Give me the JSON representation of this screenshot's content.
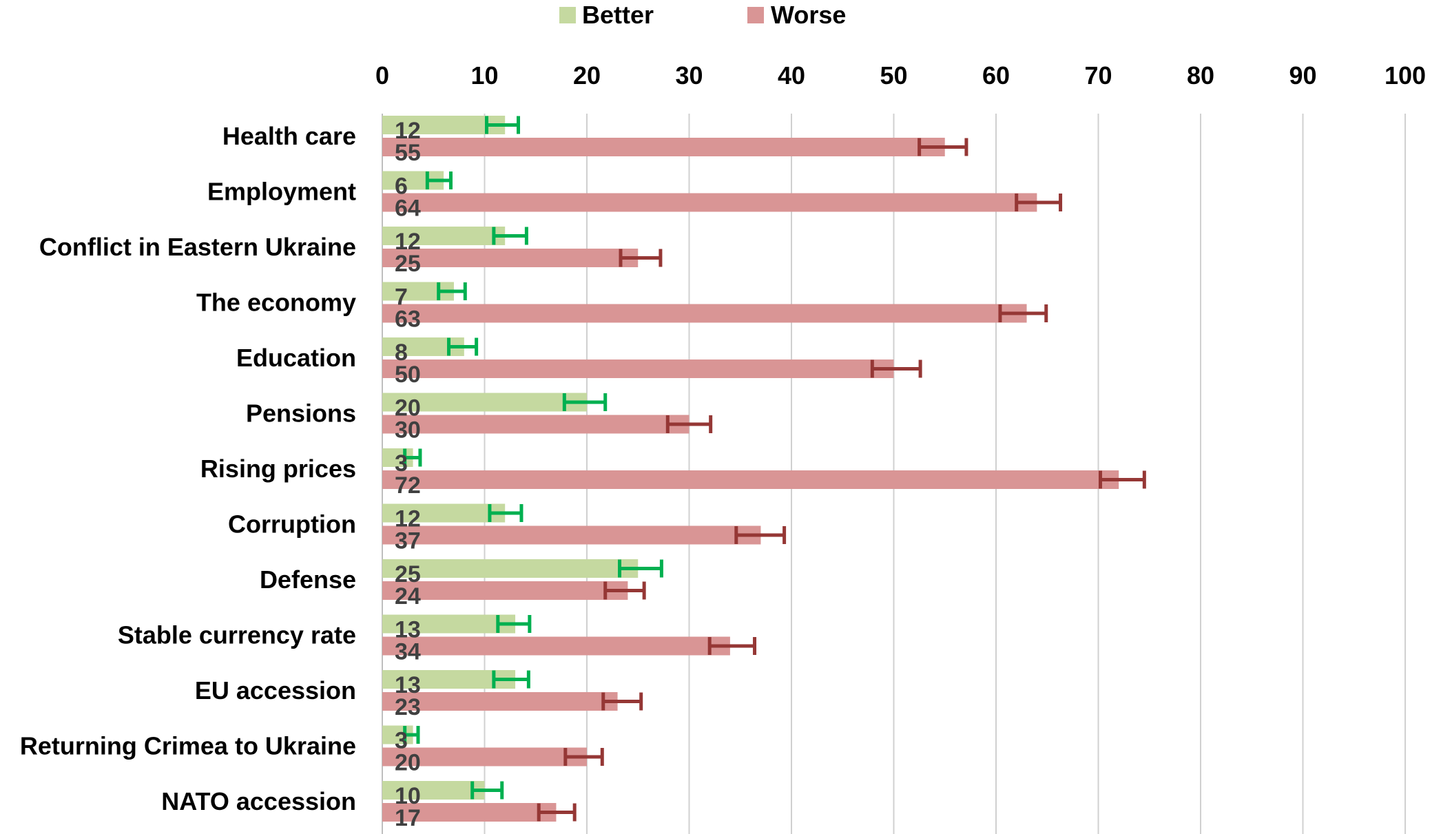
{
  "chart_data": {
    "type": "bar",
    "orientation": "horizontal",
    "title": "",
    "xlabel": "",
    "ylabel": "",
    "xlim": [
      0,
      100
    ],
    "xticks": [
      0,
      10,
      20,
      30,
      40,
      50,
      60,
      70,
      80,
      90,
      100
    ],
    "grid": true,
    "legend_position": "top",
    "error_bars": true,
    "categories": [
      "Health care",
      "Employment",
      "Conflict in Eastern Ukraine",
      "The economy",
      "Education",
      "Pensions",
      "Rising prices",
      "Corruption",
      "Defense",
      "Stable currency rate",
      "EU accession",
      "Returning Crimea to Ukraine",
      "NATO accession"
    ],
    "series": [
      {
        "name": "Better",
        "color": "#c5d9a0",
        "error_color": "#00b050",
        "values": [
          12,
          6,
          12,
          7,
          8,
          20,
          3,
          12,
          25,
          13,
          13,
          3,
          10
        ],
        "labels": [
          "12",
          "6",
          "12",
          "7",
          "8",
          "20",
          "3",
          "12",
          "25",
          "13",
          "13",
          "3",
          "10"
        ],
        "error_low": [
          10.2,
          4.4,
          10.9,
          5.5,
          6.5,
          17.8,
          2.2,
          10.5,
          23.2,
          11.3,
          10.9,
          2.2,
          8.8
        ],
        "error_high": [
          13.3,
          6.7,
          14.1,
          8.1,
          9.2,
          21.8,
          3.7,
          13.6,
          27.3,
          14.4,
          14.3,
          3.5,
          11.7
        ]
      },
      {
        "name": "Worse",
        "color": "#d99595",
        "error_color": "#953735",
        "values": [
          55,
          64,
          25,
          63,
          50,
          30,
          72,
          37,
          24,
          34,
          23,
          20,
          17
        ],
        "labels": [
          "55",
          "64",
          "25",
          "63",
          "50",
          "30",
          "72",
          "37",
          "24",
          "34",
          "23",
          "20",
          "17"
        ],
        "error_low": [
          52.5,
          62.0,
          23.3,
          60.4,
          47.9,
          27.9,
          70.2,
          34.6,
          21.8,
          32.0,
          21.6,
          17.9,
          15.3
        ],
        "error_high": [
          57.1,
          66.3,
          27.2,
          64.9,
          52.6,
          32.1,
          74.5,
          39.3,
          25.6,
          36.4,
          25.3,
          21.5,
          18.8
        ]
      }
    ]
  }
}
